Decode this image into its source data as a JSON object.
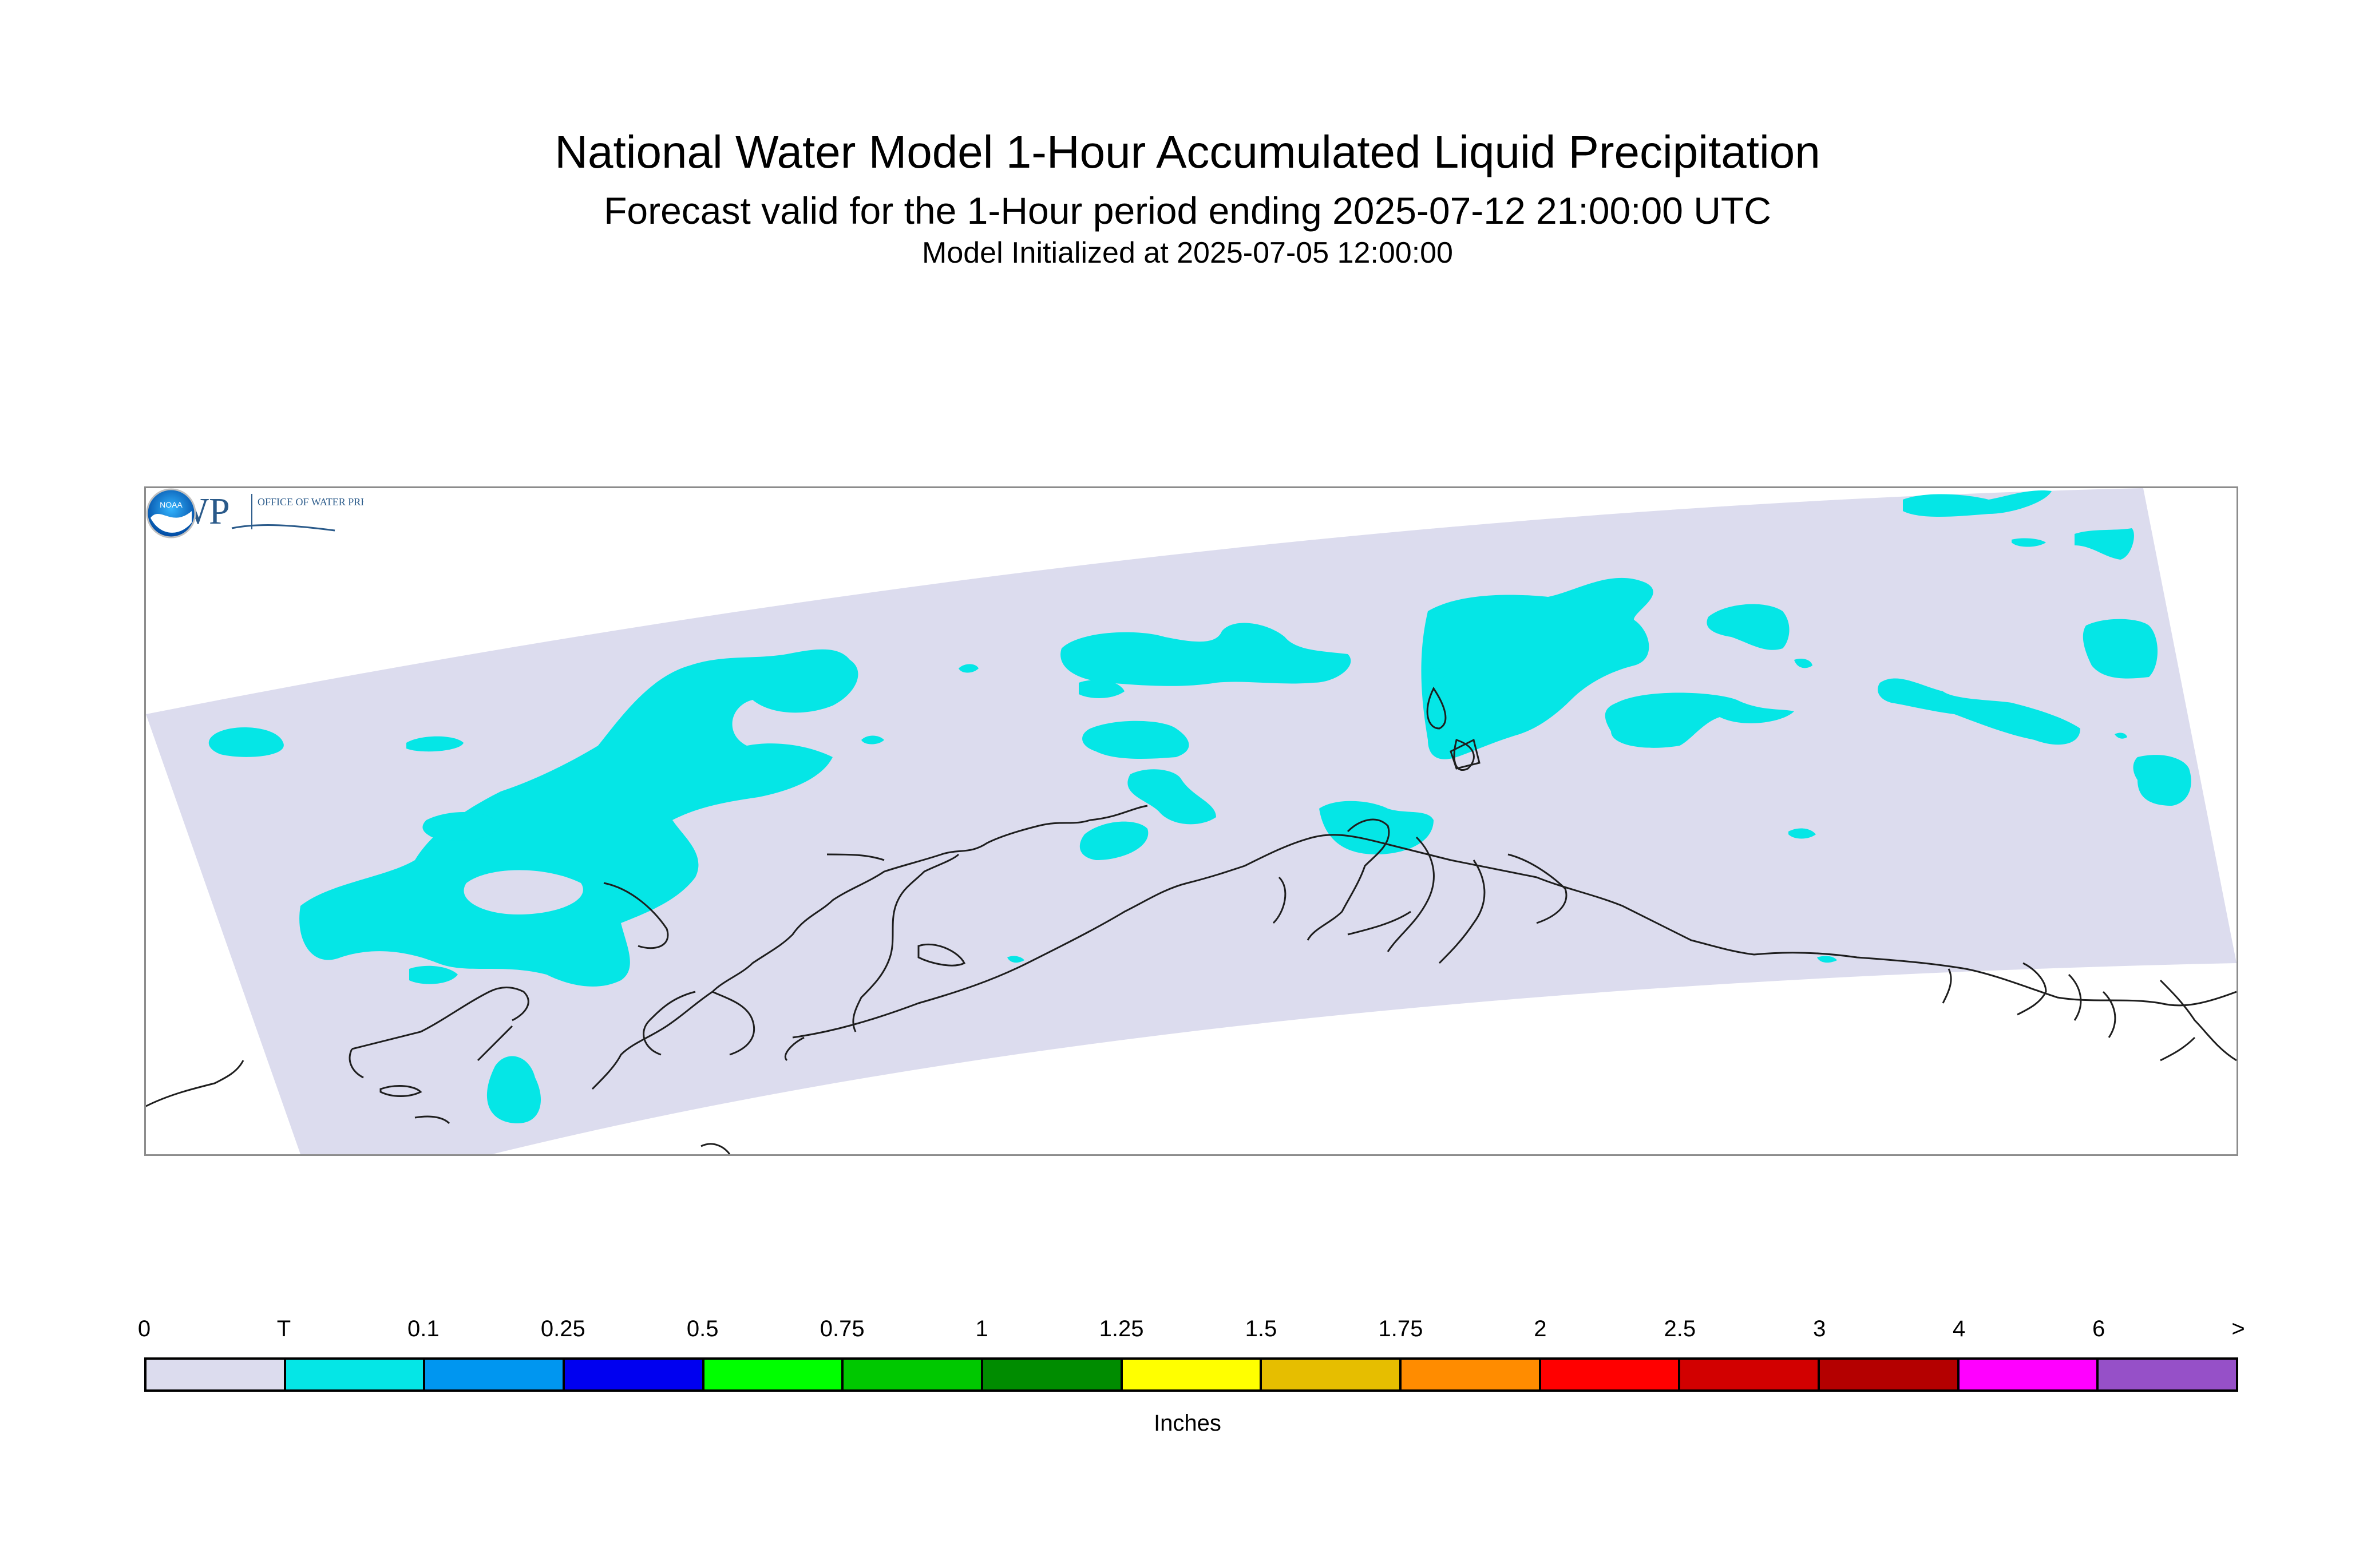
{
  "title": {
    "line1": "National Water Model 1-Hour Accumulated Liquid Precipitation",
    "line2": "Forecast valid for the 1-Hour period ending 2025-07-12 21:00:00 UTC",
    "line3": "Model Initialized at 2025-07-05 12:00:00"
  },
  "map": {
    "domain_color": "#dcdcee",
    "precip_color": "#05e6e6",
    "coastline_color": "#1e1e1e",
    "frame_color": "#8c8c8c",
    "logos": {
      "owp": {
        "icon": "owp-logo",
        "text": "OWP",
        "subtext": "OFFICE OF WATER PREDICTION"
      },
      "noaa": {
        "icon": "noaa-logo",
        "text": "NOAA"
      }
    }
  },
  "legend": {
    "title": "Inches",
    "labels": [
      "0",
      "T",
      "0.1",
      "0.25",
      "0.5",
      "0.75",
      "1",
      "1.25",
      "1.5",
      "1.75",
      "2",
      "2.5",
      "3",
      "4",
      "6",
      ">"
    ],
    "colors": [
      "#dcdcee",
      "#05e6e6",
      "#0096f0",
      "#0000f0",
      "#00ff00",
      "#00c800",
      "#008c00",
      "#ffff00",
      "#e6be00",
      "#ff8c00",
      "#ff0000",
      "#d20000",
      "#b40000",
      "#ff00ff",
      "#9650c8"
    ]
  }
}
